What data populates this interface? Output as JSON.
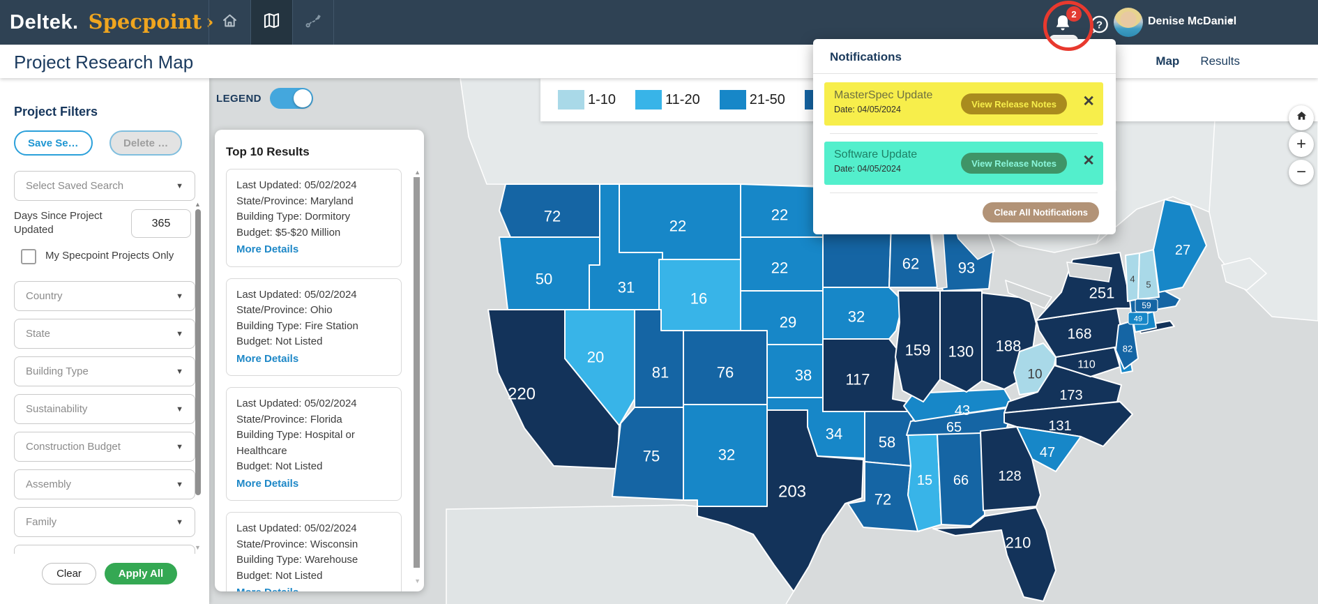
{
  "navbar": {
    "brand": {
      "deltek": "Deltek.",
      "product": "Specpoint",
      "chevron": "›"
    },
    "notification_count": "2",
    "user_name": "Denise McDaniel"
  },
  "header": {
    "title": "Project Research Map",
    "tabs": [
      {
        "label": "Map",
        "active": true
      },
      {
        "label": "Results",
        "active": false
      }
    ]
  },
  "filters": {
    "title": "Project Filters",
    "save_label": "Save Se…",
    "delete_label": "Delete …",
    "saved_search_placeholder": "Select Saved Search",
    "days_label": "Days Since Project Updated",
    "days_value": "365",
    "specpoint_only_label": "My Specpoint Projects Only",
    "dropdowns": [
      "Country",
      "State",
      "Building Type",
      "Sustainability",
      "Construction Budget",
      "Assembly",
      "Family"
    ],
    "clear_label": "Clear",
    "apply_label": "Apply All"
  },
  "legend": {
    "label": "LEGEND",
    "toggle_on": true,
    "items": [
      {
        "range": "1-10",
        "color": "#a9d9e8"
      },
      {
        "range": "11-20",
        "color": "#38b4e8"
      },
      {
        "range": "21-50",
        "color": "#1787c8"
      },
      {
        "range": "",
        "color": "#1565a4"
      }
    ]
  },
  "results": {
    "title": "Top 10 Results",
    "more_details_label": "More Details",
    "cards": [
      {
        "lines": [
          "Last Updated: 05/02/2024",
          "State/Province: Maryland",
          "Building Type: Dormitory",
          "Budget: $5-$20 Million"
        ]
      },
      {
        "lines": [
          "Last Updated: 05/02/2024",
          "State/Province: Ohio",
          "Building Type: Fire Station",
          "Budget: Not Listed"
        ]
      },
      {
        "lines": [
          "Last Updated: 05/02/2024",
          "State/Province: Florida",
          "Building Type: Hospital or Healthcare",
          "Budget: Not Listed"
        ]
      },
      {
        "lines": [
          "Last Updated: 05/02/2024",
          "State/Province: Wisconsin",
          "Building Type: Warehouse",
          "Budget: Not Listed"
        ]
      }
    ]
  },
  "notifications": {
    "title": "Notifications",
    "items": [
      {
        "title": "MasterSpec Update",
        "date": "Date: 04/05/2024",
        "button_label": "View Release Notes",
        "bg_color": "#f7ee4b",
        "title_color": "#6e7040",
        "button_bg": "#a98b1e",
        "button_text_color": "#f7ee4b"
      },
      {
        "title": "Software Update",
        "date": "Date: 04/05/2024",
        "button_label": "View Release Notes",
        "bg_color": "#53efcc",
        "title_color": "#1d8066",
        "button_bg": "#3f9467",
        "button_text_color": "#8af5da"
      }
    ],
    "clear_all_label": "Clear All Notifications",
    "clear_all_bg": "#b29377"
  },
  "map": {
    "controls": {
      "zoom_in": "+",
      "zoom_out": "−"
    },
    "bucket_colors": {
      "1-10": "#a9d9e8",
      "11-20": "#38b4e8",
      "21-50": "#1787c8",
      "51-100": "#1565a4",
      "100+": "#13335a"
    },
    "states": [
      {
        "id": "WA",
        "value": "72",
        "bucket": "51-100"
      },
      {
        "id": "OR",
        "value": "50",
        "bucket": "21-50"
      },
      {
        "id": "CA",
        "value": "220",
        "bucket": "100+"
      },
      {
        "id": "ID",
        "value": "31",
        "bucket": "21-50"
      },
      {
        "id": "NV",
        "value": "20",
        "bucket": "11-20"
      },
      {
        "id": "MT",
        "value": "22",
        "bucket": "21-50"
      },
      {
        "id": "WY",
        "value": "16",
        "bucket": "11-20"
      },
      {
        "id": "UT",
        "value": "81",
        "bucket": "51-100"
      },
      {
        "id": "CO",
        "value": "76",
        "bucket": "51-100"
      },
      {
        "id": "AZ",
        "value": "75",
        "bucket": "51-100"
      },
      {
        "id": "NM",
        "value": "32",
        "bucket": "21-50"
      },
      {
        "id": "ND",
        "value": "22",
        "bucket": "21-50"
      },
      {
        "id": "SD",
        "value": "22",
        "bucket": "21-50"
      },
      {
        "id": "NE",
        "value": "29",
        "bucket": "21-50"
      },
      {
        "id": "KS",
        "value": "38",
        "bucket": "21-50"
      },
      {
        "id": "OK",
        "value": "34",
        "bucket": "21-50"
      },
      {
        "id": "TX",
        "value": "203",
        "bucket": "100+"
      },
      {
        "id": "MN",
        "value": "",
        "bucket": "51-100"
      },
      {
        "id": "IA",
        "value": "32",
        "bucket": "21-50"
      },
      {
        "id": "MO",
        "value": "117",
        "bucket": "100+"
      },
      {
        "id": "AR",
        "value": "58",
        "bucket": "51-100"
      },
      {
        "id": "LA",
        "value": "72",
        "bucket": "51-100"
      },
      {
        "id": "MS",
        "value": "15",
        "bucket": "11-20"
      },
      {
        "id": "AL",
        "value": "66",
        "bucket": "51-100"
      },
      {
        "id": "TN",
        "value": "65",
        "bucket": "51-100"
      },
      {
        "id": "KY",
        "value": "43",
        "bucket": "21-50"
      },
      {
        "id": "WI",
        "value": "62",
        "bucket": "51-100"
      },
      {
        "id": "IL",
        "value": "159",
        "bucket": "100+"
      },
      {
        "id": "IN",
        "value": "130",
        "bucket": "100+"
      },
      {
        "id": "MI",
        "value": "93",
        "bucket": "51-100"
      },
      {
        "id": "OH",
        "value": "188",
        "bucket": "100+"
      },
      {
        "id": "WV",
        "value": "10",
        "bucket": "1-10"
      },
      {
        "id": "VA",
        "value": "173",
        "bucket": "100+"
      },
      {
        "id": "MD",
        "value": "110",
        "bucket": "100+"
      },
      {
        "id": "DE",
        "value": "",
        "bucket": "21-50"
      },
      {
        "id": "PA",
        "value": "168",
        "bucket": "100+"
      },
      {
        "id": "NJ",
        "value": "82",
        "bucket": "51-100"
      },
      {
        "id": "NY",
        "value": "251",
        "bucket": "100+"
      },
      {
        "id": "CT",
        "value": "49",
        "bucket": "21-50"
      },
      {
        "id": "MA",
        "value": "59",
        "bucket": "51-100"
      },
      {
        "id": "VT",
        "value": "4",
        "bucket": "1-10"
      },
      {
        "id": "NH",
        "value": "5",
        "bucket": "1-10"
      },
      {
        "id": "ME",
        "value": "27",
        "bucket": "21-50"
      },
      {
        "id": "NC",
        "value": "131",
        "bucket": "100+"
      },
      {
        "id": "SC",
        "value": "47",
        "bucket": "21-50"
      },
      {
        "id": "GA",
        "value": "128",
        "bucket": "100+"
      },
      {
        "id": "FL",
        "value": "210",
        "bucket": "100+"
      }
    ]
  }
}
